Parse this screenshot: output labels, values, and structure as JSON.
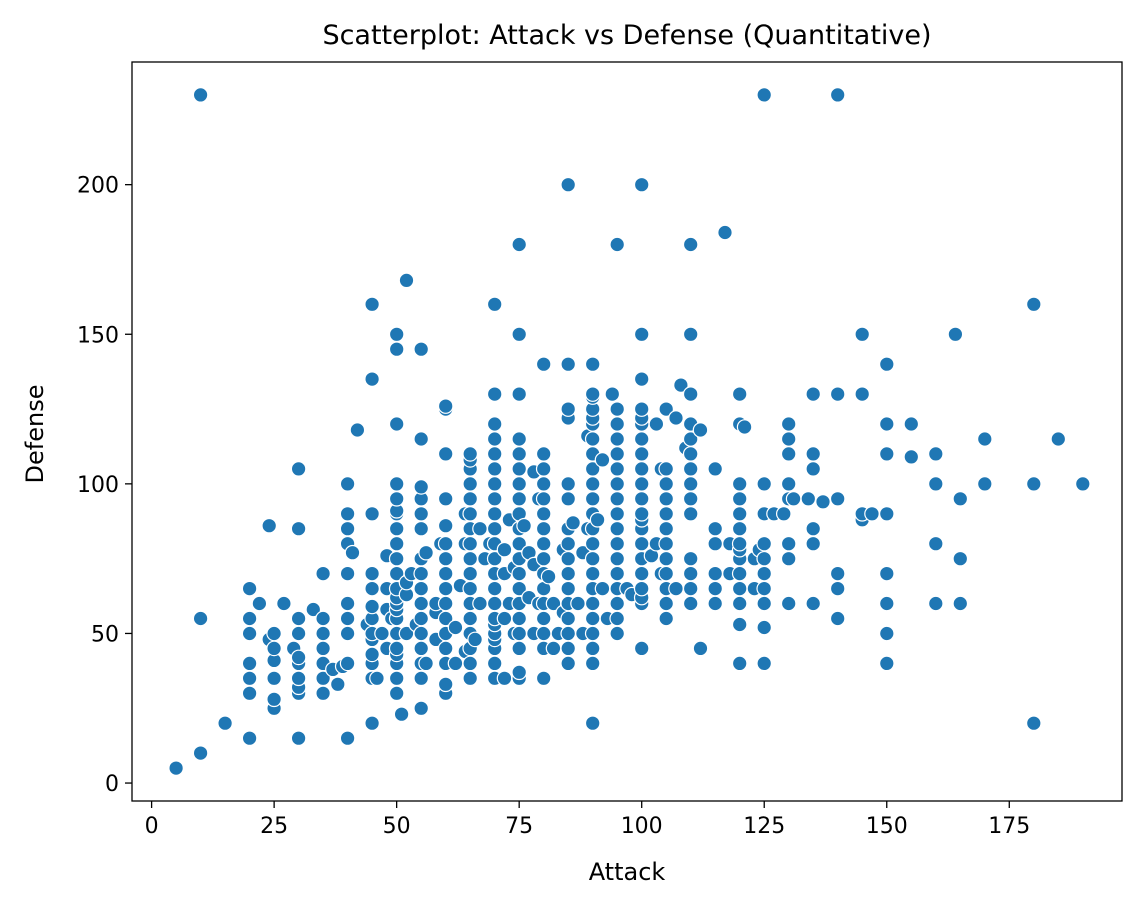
{
  "chart_data": {
    "type": "scatter",
    "title": "Scatterplot: Attack vs Defense (Quantitative)",
    "xlabel": "Attack",
    "ylabel": "Defense",
    "xlim": [
      -4,
      198
    ],
    "ylim": [
      -6,
      241
    ],
    "xticks": [
      0,
      25,
      50,
      75,
      100,
      125,
      150,
      175
    ],
    "yticks": [
      0,
      50,
      100,
      150,
      200
    ],
    "grid": false,
    "legend": "none",
    "point_color": "#1f77b4",
    "points": [
      [
        5,
        5
      ],
      [
        10,
        10
      ],
      [
        10,
        55
      ],
      [
        10,
        230
      ],
      [
        15,
        20
      ],
      [
        20,
        15
      ],
      [
        20,
        30
      ],
      [
        20,
        35
      ],
      [
        20,
        40
      ],
      [
        20,
        50
      ],
      [
        20,
        55
      ],
      [
        20,
        65
      ],
      [
        22,
        60
      ],
      [
        24,
        48
      ],
      [
        24,
        86
      ],
      [
        25,
        25
      ],
      [
        25,
        28
      ],
      [
        25,
        35
      ],
      [
        25,
        41
      ],
      [
        25,
        45
      ],
      [
        25,
        50
      ],
      [
        27,
        60
      ],
      [
        29,
        45
      ],
      [
        30,
        15
      ],
      [
        30,
        30
      ],
      [
        30,
        32
      ],
      [
        30,
        35
      ],
      [
        30,
        40
      ],
      [
        30,
        42
      ],
      [
        30,
        50
      ],
      [
        30,
        55
      ],
      [
        30,
        85
      ],
      [
        30,
        105
      ],
      [
        33,
        58
      ],
      [
        35,
        30
      ],
      [
        35,
        35
      ],
      [
        35,
        40
      ],
      [
        35,
        45
      ],
      [
        35,
        50
      ],
      [
        35,
        55
      ],
      [
        35,
        70
      ],
      [
        37,
        38
      ],
      [
        38,
        33
      ],
      [
        39,
        39
      ],
      [
        40,
        15
      ],
      [
        40,
        40
      ],
      [
        40,
        50
      ],
      [
        40,
        55
      ],
      [
        40,
        60
      ],
      [
        40,
        70
      ],
      [
        40,
        80
      ],
      [
        40,
        85
      ],
      [
        40,
        90
      ],
      [
        40,
        100
      ],
      [
        41,
        77
      ],
      [
        42,
        118
      ],
      [
        44,
        53
      ],
      [
        45,
        20
      ],
      [
        45,
        35
      ],
      [
        45,
        40
      ],
      [
        45,
        43
      ],
      [
        45,
        48
      ],
      [
        45,
        50
      ],
      [
        45,
        55
      ],
      [
        45,
        59
      ],
      [
        45,
        65
      ],
      [
        45,
        70
      ],
      [
        45,
        90
      ],
      [
        45,
        135
      ],
      [
        45,
        160
      ],
      [
        46,
        35
      ],
      [
        47,
        50
      ],
      [
        48,
        45
      ],
      [
        48,
        58
      ],
      [
        48,
        65
      ],
      [
        48,
        76
      ],
      [
        49,
        55
      ],
      [
        50,
        30
      ],
      [
        50,
        35
      ],
      [
        50,
        40
      ],
      [
        50,
        43
      ],
      [
        50,
        45
      ],
      [
        50,
        50
      ],
      [
        50,
        55
      ],
      [
        50,
        58
      ],
      [
        50,
        60
      ],
      [
        50,
        62
      ],
      [
        50,
        65
      ],
      [
        50,
        70
      ],
      [
        50,
        75
      ],
      [
        50,
        80
      ],
      [
        50,
        85
      ],
      [
        50,
        90
      ],
      [
        50,
        91
      ],
      [
        50,
        95
      ],
      [
        50,
        100
      ],
      [
        50,
        120
      ],
      [
        50,
        145
      ],
      [
        50,
        150
      ],
      [
        51,
        23
      ],
      [
        52,
        50
      ],
      [
        52,
        63
      ],
      [
        52,
        67
      ],
      [
        52,
        168
      ],
      [
        53,
        70
      ],
      [
        54,
        53
      ],
      [
        55,
        25
      ],
      [
        55,
        35
      ],
      [
        55,
        40
      ],
      [
        55,
        45
      ],
      [
        55,
        50
      ],
      [
        55,
        55
      ],
      [
        55,
        60
      ],
      [
        55,
        65
      ],
      [
        55,
        70
      ],
      [
        55,
        75
      ],
      [
        55,
        85
      ],
      [
        55,
        90
      ],
      [
        55,
        95
      ],
      [
        55,
        99
      ],
      [
        55,
        115
      ],
      [
        55,
        145
      ],
      [
        56,
        40
      ],
      [
        56,
        77
      ],
      [
        58,
        48
      ],
      [
        58,
        57
      ],
      [
        58,
        60
      ],
      [
        59,
        80
      ],
      [
        60,
        30
      ],
      [
        60,
        33
      ],
      [
        60,
        40
      ],
      [
        60,
        45
      ],
      [
        60,
        50
      ],
      [
        60,
        55
      ],
      [
        60,
        60
      ],
      [
        60,
        65
      ],
      [
        60,
        70
      ],
      [
        60,
        75
      ],
      [
        60,
        80
      ],
      [
        60,
        86
      ],
      [
        60,
        95
      ],
      [
        60,
        110
      ],
      [
        60,
        125
      ],
      [
        60,
        126
      ],
      [
        62,
        40
      ],
      [
        62,
        52
      ],
      [
        63,
        66
      ],
      [
        64,
        44
      ],
      [
        64,
        80
      ],
      [
        64,
        90
      ],
      [
        65,
        35
      ],
      [
        65,
        40
      ],
      [
        65,
        45
      ],
      [
        65,
        50
      ],
      [
        65,
        55
      ],
      [
        65,
        60
      ],
      [
        65,
        65
      ],
      [
        65,
        70
      ],
      [
        65,
        75
      ],
      [
        65,
        80
      ],
      [
        65,
        85
      ],
      [
        65,
        90
      ],
      [
        65,
        95
      ],
      [
        65,
        100
      ],
      [
        65,
        105
      ],
      [
        65,
        108
      ],
      [
        65,
        110
      ],
      [
        66,
        48
      ],
      [
        67,
        60
      ],
      [
        67,
        85
      ],
      [
        68,
        75
      ],
      [
        69,
        80
      ],
      [
        70,
        35
      ],
      [
        70,
        40
      ],
      [
        70,
        45
      ],
      [
        70,
        48
      ],
      [
        70,
        50
      ],
      [
        70,
        53
      ],
      [
        70,
        55
      ],
      [
        70,
        60
      ],
      [
        70,
        65
      ],
      [
        70,
        70
      ],
      [
        70,
        75
      ],
      [
        70,
        80
      ],
      [
        70,
        85
      ],
      [
        70,
        90
      ],
      [
        70,
        95
      ],
      [
        70,
        100
      ],
      [
        70,
        105
      ],
      [
        70,
        110
      ],
      [
        70,
        115
      ],
      [
        70,
        120
      ],
      [
        70,
        130
      ],
      [
        70,
        160
      ],
      [
        72,
        35
      ],
      [
        72,
        55
      ],
      [
        72,
        70
      ],
      [
        72,
        78
      ],
      [
        73,
        60
      ],
      [
        73,
        88
      ],
      [
        74,
        50
      ],
      [
        74,
        72
      ],
      [
        75,
        35
      ],
      [
        75,
        37
      ],
      [
        75,
        45
      ],
      [
        75,
        50
      ],
      [
        75,
        55
      ],
      [
        75,
        60
      ],
      [
        75,
        65
      ],
      [
        75,
        70
      ],
      [
        75,
        75
      ],
      [
        75,
        80
      ],
      [
        75,
        85
      ],
      [
        75,
        90
      ],
      [
        75,
        95
      ],
      [
        75,
        100
      ],
      [
        75,
        105
      ],
      [
        75,
        110
      ],
      [
        75,
        115
      ],
      [
        75,
        130
      ],
      [
        75,
        150
      ],
      [
        75,
        180
      ],
      [
        76,
        86
      ],
      [
        77,
        62
      ],
      [
        77,
        77
      ],
      [
        78,
        50
      ],
      [
        78,
        73
      ],
      [
        78,
        104
      ],
      [
        79,
        60
      ],
      [
        79,
        95
      ],
      [
        80,
        35
      ],
      [
        80,
        45
      ],
      [
        80,
        50
      ],
      [
        80,
        55
      ],
      [
        80,
        60
      ],
      [
        80,
        65
      ],
      [
        80,
        70
      ],
      [
        80,
        75
      ],
      [
        80,
        80
      ],
      [
        80,
        85
      ],
      [
        80,
        90
      ],
      [
        80,
        95
      ],
      [
        80,
        100
      ],
      [
        80,
        105
      ],
      [
        80,
        110
      ],
      [
        80,
        140
      ],
      [
        81,
        69
      ],
      [
        82,
        45
      ],
      [
        82,
        60
      ],
      [
        83,
        50
      ],
      [
        84,
        57
      ],
      [
        84,
        78
      ],
      [
        85,
        40
      ],
      [
        85,
        45
      ],
      [
        85,
        50
      ],
      [
        85,
        55
      ],
      [
        85,
        60
      ],
      [
        85,
        65
      ],
      [
        85,
        70
      ],
      [
        85,
        75
      ],
      [
        85,
        80
      ],
      [
        85,
        85
      ],
      [
        85,
        95
      ],
      [
        85,
        100
      ],
      [
        85,
        122
      ],
      [
        85,
        125
      ],
      [
        85,
        140
      ],
      [
        85,
        200
      ],
      [
        86,
        87
      ],
      [
        87,
        60
      ],
      [
        88,
        50
      ],
      [
        88,
        77
      ],
      [
        89,
        85
      ],
      [
        89,
        116
      ],
      [
        90,
        20
      ],
      [
        90,
        40
      ],
      [
        90,
        45
      ],
      [
        90,
        50
      ],
      [
        90,
        55
      ],
      [
        90,
        60
      ],
      [
        90,
        65
      ],
      [
        90,
        70
      ],
      [
        90,
        75
      ],
      [
        90,
        80
      ],
      [
        90,
        85
      ],
      [
        90,
        90
      ],
      [
        90,
        95
      ],
      [
        90,
        100
      ],
      [
        90,
        105
      ],
      [
        90,
        110
      ],
      [
        90,
        115
      ],
      [
        90,
        120
      ],
      [
        90,
        122
      ],
      [
        90,
        125
      ],
      [
        90,
        129
      ],
      [
        90,
        130
      ],
      [
        90,
        140
      ],
      [
        91,
        88
      ],
      [
        92,
        65
      ],
      [
        92,
        108
      ],
      [
        93,
        55
      ],
      [
        94,
        130
      ],
      [
        95,
        50
      ],
      [
        95,
        55
      ],
      [
        95,
        60
      ],
      [
        95,
        65
      ],
      [
        95,
        70
      ],
      [
        95,
        75
      ],
      [
        95,
        80
      ],
      [
        95,
        85
      ],
      [
        95,
        90
      ],
      [
        95,
        95
      ],
      [
        95,
        100
      ],
      [
        95,
        105
      ],
      [
        95,
        110
      ],
      [
        95,
        115
      ],
      [
        95,
        120
      ],
      [
        95,
        125
      ],
      [
        95,
        180
      ],
      [
        97,
        65
      ],
      [
        98,
        63
      ],
      [
        100,
        45
      ],
      [
        100,
        60
      ],
      [
        100,
        62
      ],
      [
        100,
        65
      ],
      [
        100,
        70
      ],
      [
        100,
        75
      ],
      [
        100,
        80
      ],
      [
        100,
        85
      ],
      [
        100,
        88
      ],
      [
        100,
        90
      ],
      [
        100,
        95
      ],
      [
        100,
        100
      ],
      [
        100,
        105
      ],
      [
        100,
        110
      ],
      [
        100,
        115
      ],
      [
        100,
        120
      ],
      [
        100,
        122
      ],
      [
        100,
        125
      ],
      [
        100,
        135
      ],
      [
        100,
        150
      ],
      [
        100,
        200
      ],
      [
        102,
        76
      ],
      [
        103,
        80
      ],
      [
        103,
        120
      ],
      [
        104,
        70
      ],
      [
        104,
        105
      ],
      [
        105,
        55
      ],
      [
        105,
        60
      ],
      [
        105,
        65
      ],
      [
        105,
        70
      ],
      [
        105,
        75
      ],
      [
        105,
        80
      ],
      [
        105,
        85
      ],
      [
        105,
        90
      ],
      [
        105,
        95
      ],
      [
        105,
        100
      ],
      [
        105,
        105
      ],
      [
        105,
        125
      ],
      [
        107,
        65
      ],
      [
        107,
        122
      ],
      [
        108,
        133
      ],
      [
        109,
        112
      ],
      [
        110,
        60
      ],
      [
        110,
        65
      ],
      [
        110,
        70
      ],
      [
        110,
        75
      ],
      [
        110,
        90
      ],
      [
        110,
        95
      ],
      [
        110,
        100
      ],
      [
        110,
        105
      ],
      [
        110,
        110
      ],
      [
        110,
        115
      ],
      [
        110,
        120
      ],
      [
        110,
        130
      ],
      [
        110,
        150
      ],
      [
        110,
        180
      ],
      [
        112,
        45
      ],
      [
        112,
        118
      ],
      [
        115,
        60
      ],
      [
        115,
        65
      ],
      [
        115,
        70
      ],
      [
        115,
        80
      ],
      [
        115,
        85
      ],
      [
        115,
        105
      ],
      [
        117,
        184
      ],
      [
        118,
        70
      ],
      [
        118,
        80
      ],
      [
        120,
        40
      ],
      [
        120,
        53
      ],
      [
        120,
        60
      ],
      [
        120,
        65
      ],
      [
        120,
        70
      ],
      [
        120,
        75
      ],
      [
        120,
        78
      ],
      [
        120,
        80
      ],
      [
        120,
        85
      ],
      [
        120,
        90
      ],
      [
        120,
        95
      ],
      [
        120,
        100
      ],
      [
        120,
        120
      ],
      [
        120,
        130
      ],
      [
        121,
        119
      ],
      [
        123,
        65
      ],
      [
        123,
        75
      ],
      [
        124,
        78
      ],
      [
        125,
        40
      ],
      [
        125,
        52
      ],
      [
        125,
        60
      ],
      [
        125,
        65
      ],
      [
        125,
        70
      ],
      [
        125,
        75
      ],
      [
        125,
        80
      ],
      [
        125,
        90
      ],
      [
        125,
        100
      ],
      [
        125,
        230
      ],
      [
        127,
        90
      ],
      [
        129,
        90
      ],
      [
        130,
        60
      ],
      [
        130,
        75
      ],
      [
        130,
        80
      ],
      [
        130,
        95
      ],
      [
        130,
        100
      ],
      [
        130,
        110
      ],
      [
        130,
        115
      ],
      [
        130,
        120
      ],
      [
        131,
        95
      ],
      [
        134,
        95
      ],
      [
        135,
        60
      ],
      [
        135,
        80
      ],
      [
        135,
        85
      ],
      [
        135,
        105
      ],
      [
        135,
        110
      ],
      [
        135,
        130
      ],
      [
        137,
        94
      ],
      [
        140,
        55
      ],
      [
        140,
        65
      ],
      [
        140,
        70
      ],
      [
        140,
        95
      ],
      [
        140,
        130
      ],
      [
        140,
        230
      ],
      [
        145,
        88
      ],
      [
        145,
        90
      ],
      [
        145,
        130
      ],
      [
        145,
        150
      ],
      [
        147,
        90
      ],
      [
        150,
        40
      ],
      [
        150,
        50
      ],
      [
        150,
        60
      ],
      [
        150,
        70
      ],
      [
        150,
        90
      ],
      [
        150,
        110
      ],
      [
        150,
        120
      ],
      [
        150,
        140
      ],
      [
        155,
        109
      ],
      [
        155,
        120
      ],
      [
        160,
        60
      ],
      [
        160,
        80
      ],
      [
        160,
        100
      ],
      [
        160,
        110
      ],
      [
        164,
        150
      ],
      [
        165,
        60
      ],
      [
        165,
        75
      ],
      [
        165,
        95
      ],
      [
        170,
        100
      ],
      [
        170,
        115
      ],
      [
        180,
        20
      ],
      [
        180,
        100
      ],
      [
        180,
        160
      ],
      [
        185,
        115
      ],
      [
        190,
        100
      ]
    ]
  }
}
